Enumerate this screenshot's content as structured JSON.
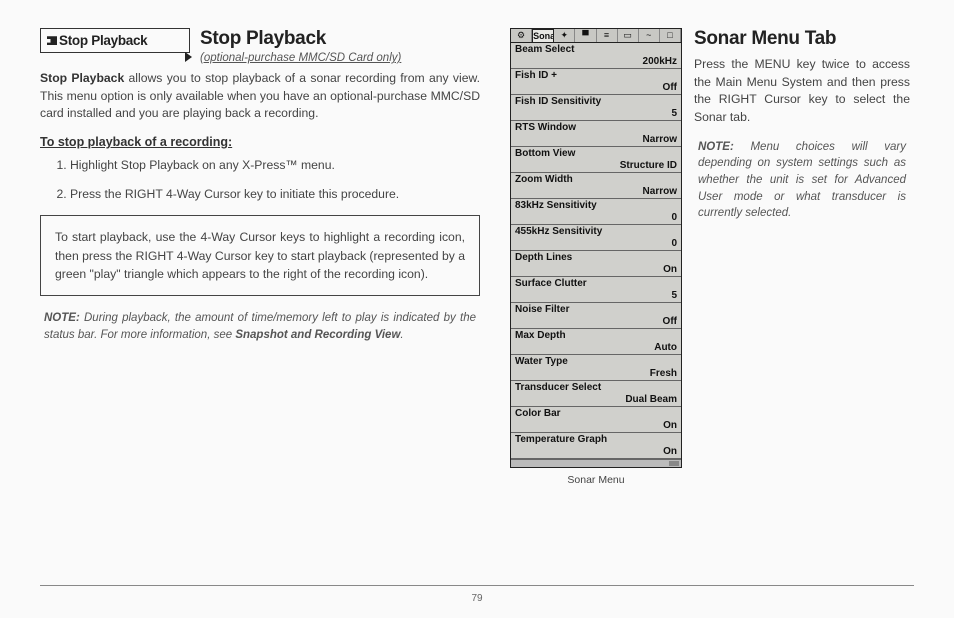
{
  "pageNumber": "79",
  "left": {
    "menuChip": "Stop Playback",
    "title": "Stop Playback",
    "subtitle": "(optional-purchase MMC/SD Card only)",
    "intro": "<b>Stop Playback</b> allows you to stop playback of a sonar recording from any view. This menu option is only available when you have an optional-purchase MMC/SD card installed and you are playing back a recording.",
    "stepsHead": "To stop playback of a recording:",
    "step1": "Highlight Stop Playback on any X-Press™ menu.",
    "step2": "Press the RIGHT 4-Way Cursor key to initiate this procedure.",
    "callout": "To start playback, use the 4-Way Cursor keys to highlight a recording icon, then press the RIGHT 4-Way Cursor key to start playback (represented by a green \"play\" triangle which appears to the right of the recording icon).",
    "note": "<b>NOTE:</b>  During playback, the amount of time/memory left to play is indicated by the status bar. For more information, see <b>Snapshot and Recording View</b>."
  },
  "right": {
    "title": "Sonar Menu Tab",
    "intro": "Press the MENU key twice to access the Main Menu System and then press the RIGHT Cursor key to select the Sonar tab.",
    "note": "<b>NOTE:</b> Menu choices will vary depending on system settings such as whether the unit is set for Advanced User mode or what transducer is currently selected.",
    "deviceCaption": "Sonar Menu",
    "tabs": [
      "⚙",
      "Sonar",
      "✦",
      "▀",
      "≡",
      "▭",
      "~",
      "□"
    ],
    "rows": [
      {
        "label": "Beam Select",
        "value": "200kHz"
      },
      {
        "label": "Fish ID +",
        "value": "Off"
      },
      {
        "label": "Fish ID Sensitivity",
        "value": "5"
      },
      {
        "label": "RTS Window",
        "value": "Narrow"
      },
      {
        "label": "Bottom View",
        "value": "Structure ID"
      },
      {
        "label": "Zoom Width",
        "value": "Narrow"
      },
      {
        "label": "83kHz Sensitivity",
        "value": "0"
      },
      {
        "label": "455kHz Sensitivity",
        "value": "0"
      },
      {
        "label": "Depth Lines",
        "value": "On"
      },
      {
        "label": "Surface Clutter",
        "value": "5"
      },
      {
        "label": "Noise Filter",
        "value": "Off"
      },
      {
        "label": "Max Depth",
        "value": "Auto"
      },
      {
        "label": "Water Type",
        "value": "Fresh"
      },
      {
        "label": "Transducer Select",
        "value": "Dual Beam"
      },
      {
        "label": "Color Bar",
        "value": "On"
      },
      {
        "label": "Temperature Graph",
        "value": "On"
      }
    ]
  }
}
